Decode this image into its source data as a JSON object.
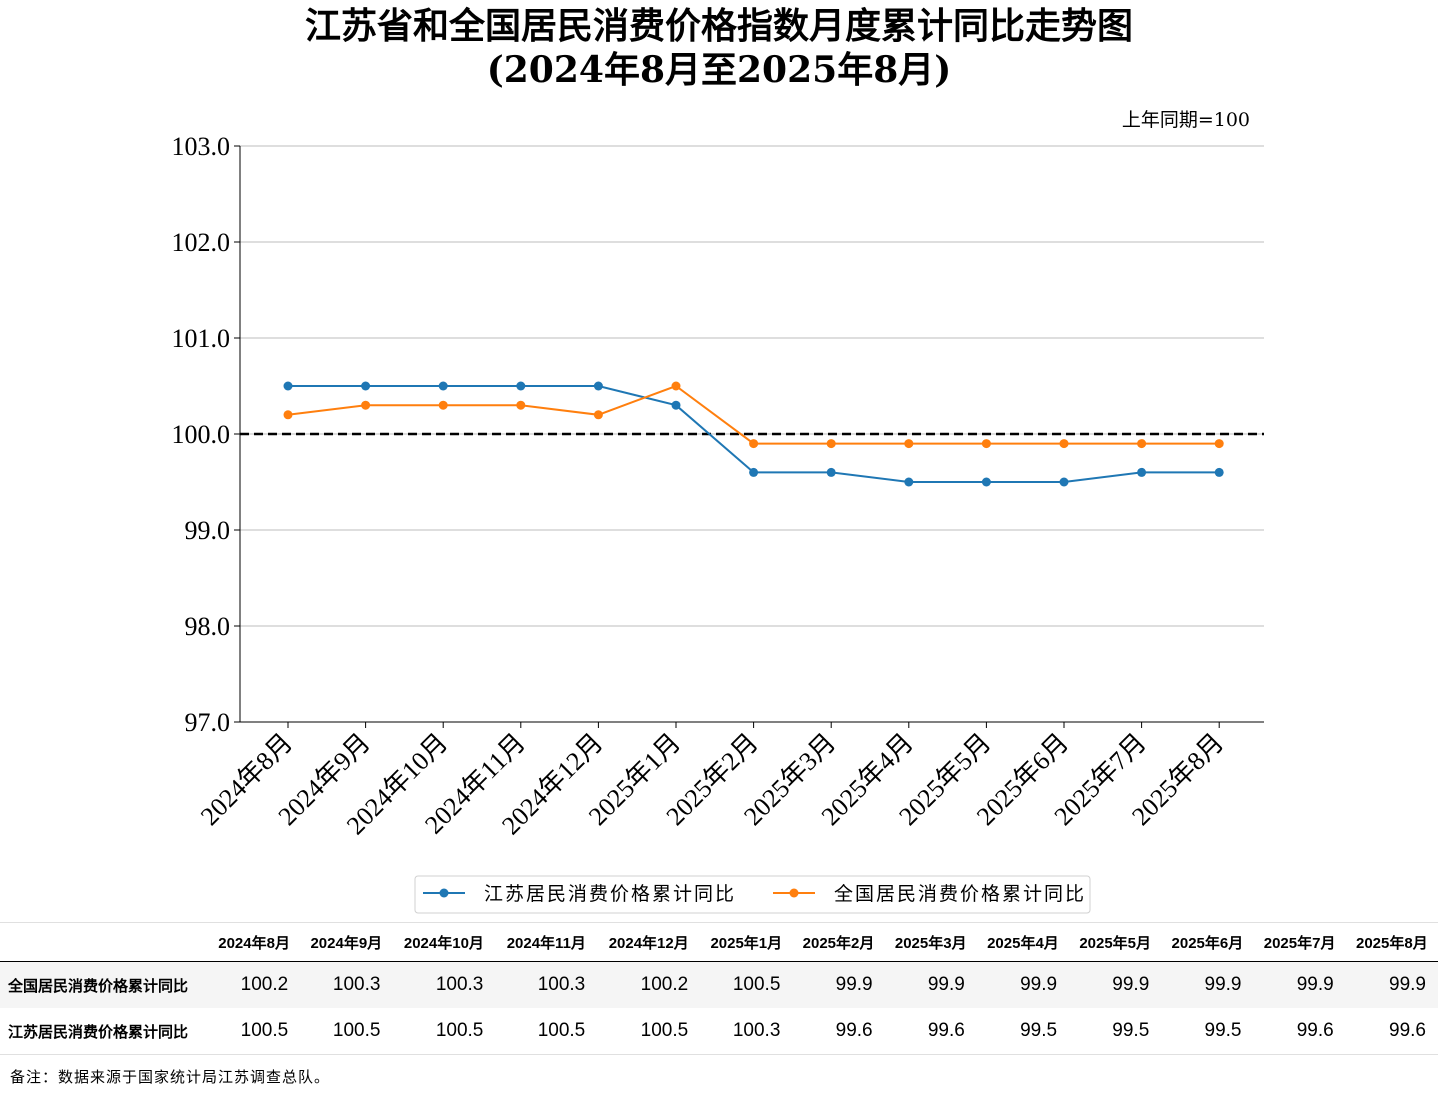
{
  "title_line1": "江苏省和全国居民消费价格指数月度累计同比走势图",
  "title_line2": "(2024年8月至2025年8月)",
  "base_note": "上年同期=100",
  "source_note": "备注：数据来源于国家统计局江苏调查总队。",
  "table": {
    "corner": "",
    "row1_label": "全国居民消费价格累计同比",
    "row2_label": "江苏居民消费价格累计同比"
  },
  "chart_data": {
    "type": "line",
    "categories": [
      "2024年8月",
      "2024年9月",
      "2024年10月",
      "2024年11月",
      "2024年12月",
      "2025年1月",
      "2025年2月",
      "2025年3月",
      "2025年4月",
      "2025年5月",
      "2025年6月",
      "2025年7月",
      "2025年8月"
    ],
    "series": [
      {
        "name": "江苏居民消费价格累计同比",
        "color": "#1f77b4",
        "values": [
          100.5,
          100.5,
          100.5,
          100.5,
          100.5,
          100.3,
          99.6,
          99.6,
          99.5,
          99.5,
          99.5,
          99.6,
          99.6
        ]
      },
      {
        "name": "全国居民消费价格累计同比",
        "color": "#ff7f0e",
        "values": [
          100.2,
          100.3,
          100.3,
          100.3,
          100.2,
          100.5,
          99.9,
          99.9,
          99.9,
          99.9,
          99.9,
          99.9,
          99.9
        ]
      }
    ],
    "yticks": [
      "103.0",
      "102.0",
      "101.0",
      "100.0",
      "99.0",
      "98.0",
      "97.0"
    ],
    "ylim": [
      97,
      103
    ],
    "reference_line": 100,
    "grid": "horizontal",
    "legend_position": "bottom-center"
  }
}
